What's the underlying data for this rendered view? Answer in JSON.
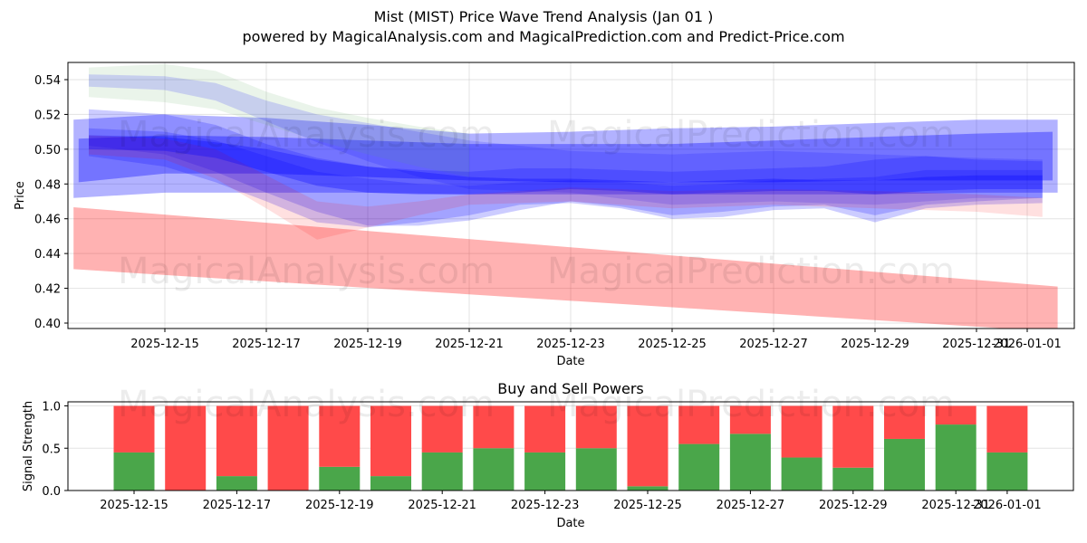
{
  "header": {
    "title": "Mist (MIST) Price Wave Trend Analysis (Jan 01 )",
    "subtitle": "powered by MagicalAnalysis.com and MagicalPrediction.com and Predict-Price.com"
  },
  "watermarks": [
    "MagicalAnalysis.com",
    "MagicalPrediction.com"
  ],
  "colors": {
    "blue_band": "#0000ff",
    "green_band": "#6fb36f",
    "red_band": "#ff0000",
    "buy": "#4aa64a",
    "sell": "#ff4a4a"
  },
  "chart_data": [
    {
      "type": "area",
      "title": "Mist (MIST) Price Wave Trend Analysis (Jan 01 )",
      "xlabel": "Date",
      "ylabel": "Price",
      "ylim": [
        0.398,
        0.55
      ],
      "grid": true,
      "x_ticks": [
        "2025-12-15",
        "2025-12-17",
        "2025-12-19",
        "2025-12-21",
        "2025-12-23",
        "2025-12-25",
        "2025-12-27",
        "2025-12-29",
        "2025-12-31",
        "2026-01-01"
      ],
      "y_ticks": [
        "0.40",
        "0.42",
        "0.44",
        "0.46",
        "0.48",
        "0.50",
        "0.52",
        "0.54"
      ],
      "bands": [
        {
          "name": "red-trend-band",
          "color": "#ff0000",
          "opacity": 0.3,
          "x": [
            13.2,
            32.6
          ],
          "upper": [
            0.4666,
            0.421
          ],
          "lower": [
            0.431,
            0.395
          ]
        },
        {
          "name": "wide-blue-band",
          "color": "#0000ff",
          "opacity": 0.3,
          "x": [
            13.2,
            15,
            17,
            19,
            21,
            23,
            25,
            27,
            29,
            31,
            32.6
          ],
          "upper": [
            0.517,
            0.52,
            0.518,
            0.514,
            0.509,
            0.51,
            0.512,
            0.513,
            0.515,
            0.517,
            0.517
          ],
          "lower": [
            0.472,
            0.475,
            0.475,
            0.475,
            0.474,
            0.474,
            0.474,
            0.474,
            0.474,
            0.475,
            0.475
          ]
        },
        {
          "name": "mid-blue-band",
          "color": "#0000ff",
          "opacity": 0.35,
          "x": [
            13.3,
            15,
            17,
            19,
            21,
            23,
            25,
            27,
            29,
            31,
            32.5
          ],
          "upper": [
            0.506,
            0.508,
            0.507,
            0.505,
            0.503,
            0.503,
            0.503,
            0.505,
            0.507,
            0.509,
            0.51
          ],
          "lower": [
            0.481,
            0.486,
            0.486,
            0.484,
            0.482,
            0.481,
            0.481,
            0.481,
            0.482,
            0.482,
            0.482
          ]
        },
        {
          "name": "top-green-band",
          "color": "#6fb36f",
          "opacity": 0.15,
          "x": [
            13.5,
            15,
            16,
            17,
            18,
            19,
            20,
            21
          ],
          "upper": [
            0.547,
            0.549,
            0.545,
            0.533,
            0.524,
            0.518,
            0.513,
            0.509
          ],
          "lower": [
            0.53,
            0.527,
            0.523,
            0.514,
            0.505,
            0.497,
            0.49,
            0.484
          ]
        },
        {
          "name": "top-blue-band-1",
          "color": "#0000ff",
          "opacity": 0.15,
          "x": [
            13.5,
            15,
            16,
            17,
            18,
            19,
            20,
            21,
            23,
            25,
            27,
            29,
            31,
            32.3
          ],
          "upper": [
            0.543,
            0.542,
            0.538,
            0.528,
            0.52,
            0.515,
            0.51,
            0.505,
            0.499,
            0.497,
            0.499,
            0.497,
            0.495,
            0.494
          ],
          "lower": [
            0.536,
            0.534,
            0.528,
            0.516,
            0.504,
            0.493,
            0.484,
            0.477,
            0.475,
            0.468,
            0.47,
            0.468,
            0.472,
            0.472
          ]
        },
        {
          "name": "diag-blue-band-1",
          "color": "#0000ff",
          "opacity": 0.2,
          "x": [
            13.5,
            15,
            16,
            17,
            18,
            19,
            20,
            21,
            22,
            23,
            24,
            25,
            26,
            27,
            28,
            29,
            30,
            31,
            32.3
          ],
          "upper": [
            0.523,
            0.52,
            0.514,
            0.503,
            0.495,
            0.49,
            0.488,
            0.487,
            0.489,
            0.489,
            0.488,
            0.487,
            0.488,
            0.489,
            0.49,
            0.494,
            0.496,
            0.494,
            0.493
          ],
          "lower": [
            0.502,
            0.497,
            0.487,
            0.475,
            0.464,
            0.456,
            0.456,
            0.459,
            0.465,
            0.47,
            0.467,
            0.462,
            0.464,
            0.467,
            0.468,
            0.462,
            0.468,
            0.47,
            0.472
          ]
        },
        {
          "name": "diag-blue-band-2",
          "color": "#0000ff",
          "opacity": 0.2,
          "x": [
            13.5,
            15,
            16,
            17,
            18,
            19,
            20,
            21,
            22,
            23,
            24,
            25,
            26,
            27,
            28,
            29,
            30,
            31,
            32.3
          ],
          "upper": [
            0.512,
            0.51,
            0.505,
            0.496,
            0.487,
            0.483,
            0.48,
            0.479,
            0.481,
            0.482,
            0.481,
            0.479,
            0.48,
            0.482,
            0.483,
            0.484,
            0.488,
            0.488,
            0.488
          ],
          "lower": [
            0.496,
            0.49,
            0.481,
            0.47,
            0.458,
            0.455,
            0.458,
            0.462,
            0.468,
            0.469,
            0.466,
            0.46,
            0.461,
            0.465,
            0.466,
            0.458,
            0.466,
            0.468,
            0.469
          ]
        },
        {
          "name": "red-wave-band",
          "color": "#ff0000",
          "opacity": 0.12,
          "x": [
            13.5,
            15,
            16,
            17,
            18,
            19,
            20,
            21,
            23,
            25,
            27,
            29,
            31,
            32.3
          ],
          "upper": [
            0.508,
            0.506,
            0.5,
            0.485,
            0.47,
            0.467,
            0.47,
            0.474,
            0.478,
            0.476,
            0.477,
            0.476,
            0.474,
            0.472
          ],
          "lower": [
            0.497,
            0.494,
            0.483,
            0.466,
            0.448,
            0.455,
            0.462,
            0.468,
            0.47,
            0.466,
            0.468,
            0.466,
            0.464,
            0.461
          ]
        },
        {
          "name": "core-blue-band",
          "color": "#0000ff",
          "opacity": 0.3,
          "x": [
            13.5,
            15,
            16,
            17,
            18,
            19,
            20,
            21,
            22,
            23,
            24,
            25,
            26,
            27,
            28,
            29,
            30,
            31,
            32.3
          ],
          "upper": [
            0.508,
            0.507,
            0.504,
            0.5,
            0.494,
            0.49,
            0.487,
            0.484,
            0.483,
            0.483,
            0.482,
            0.481,
            0.482,
            0.483,
            0.482,
            0.482,
            0.484,
            0.485,
            0.485
          ],
          "lower": [
            0.5,
            0.499,
            0.495,
            0.487,
            0.479,
            0.475,
            0.474,
            0.474,
            0.475,
            0.477,
            0.476,
            0.474,
            0.475,
            0.476,
            0.476,
            0.474,
            0.476,
            0.477,
            0.477
          ]
        }
      ]
    },
    {
      "type": "bar",
      "title": "Buy and Sell Powers",
      "xlabel": "Date",
      "ylabel": "Signal Strength",
      "ylim": [
        0,
        1.05
      ],
      "grid": true,
      "x_ticks": [
        "2025-12-15",
        "2025-12-17",
        "2025-12-19",
        "2025-12-21",
        "2025-12-23",
        "2025-12-25",
        "2025-12-27",
        "2025-12-29",
        "2025-12-31",
        "2026-01-01"
      ],
      "y_ticks": [
        "0.0",
        "0.5",
        "1.0"
      ],
      "categories": [
        "2025-12-15",
        "2025-12-16",
        "2025-12-17",
        "2025-12-18",
        "2025-12-19",
        "2025-12-20",
        "2025-12-21",
        "2025-12-22",
        "2025-12-23",
        "2025-12-24",
        "2025-12-25",
        "2025-12-26",
        "2025-12-27",
        "2025-12-28",
        "2025-12-29",
        "2025-12-30",
        "2025-12-31",
        "2026-01-01"
      ],
      "series": [
        {
          "name": "Buy",
          "color": "#4aa64a",
          "values": [
            0.45,
            0.0,
            0.17,
            0.0,
            0.28,
            0.17,
            0.45,
            0.5,
            0.45,
            0.5,
            0.05,
            0.55,
            0.67,
            0.39,
            0.27,
            0.61,
            0.78,
            0.45
          ]
        },
        {
          "name": "Sell",
          "color": "#ff4a4a",
          "values": [
            0.55,
            1.0,
            0.83,
            1.0,
            0.72,
            0.83,
            0.55,
            0.5,
            0.55,
            0.5,
            0.95,
            0.45,
            0.33,
            0.61,
            0.73,
            0.39,
            0.22,
            0.55
          ]
        }
      ]
    }
  ]
}
